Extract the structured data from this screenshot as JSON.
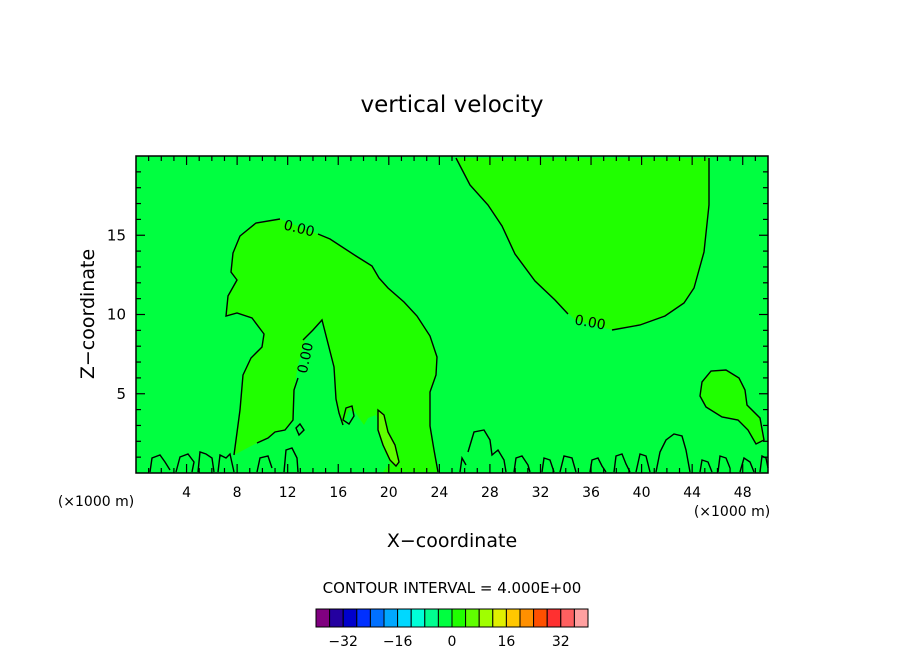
{
  "chart_data": {
    "type": "contour",
    "title": "vertical velocity",
    "xlabel": "X−coordinate",
    "ylabel": "Z−coordinate",
    "x_unit": "(×1000 m)",
    "y_unit": "(×1000 m)",
    "xlim": [
      0,
      50
    ],
    "ylim": [
      0,
      20
    ],
    "x_ticks": [
      "4",
      "8",
      "12",
      "16",
      "20",
      "24",
      "28",
      "32",
      "36",
      "40",
      "44",
      "48"
    ],
    "x_tick_values": [
      4,
      8,
      12,
      16,
      20,
      24,
      28,
      32,
      36,
      40,
      44,
      48
    ],
    "y_ticks": [
      "5",
      "10",
      "15"
    ],
    "y_tick_values": [
      5,
      10,
      15
    ],
    "contour_labels": [
      {
        "text": "0.00",
        "x": 13.0,
        "z": 15.5
      },
      {
        "text": "0.00",
        "x": 13.6,
        "z": 7.5
      },
      {
        "text": "0.00",
        "x": 36.0,
        "z": 9.5
      }
    ],
    "contour_interval_text": "CONTOUR INTERVAL = 4.000E+00",
    "colorbar": {
      "colors": [
        "#800080",
        "#2400a0",
        "#0000cc",
        "#0030ff",
        "#0070ff",
        "#00a8ff",
        "#00d8ff",
        "#00ffd8",
        "#00ff90",
        "#00ff40",
        "#20ff00",
        "#60ff00",
        "#a0ff00",
        "#e0f000",
        "#ffc800",
        "#ff9000",
        "#ff5000",
        "#ff3030",
        "#ff6060",
        "#ffa0a0"
      ],
      "tick_labels": [
        "−32",
        "−16",
        "0",
        "16",
        "32"
      ],
      "tick_values": [
        -32,
        -16,
        0,
        16,
        32
      ],
      "range": [
        -40,
        40
      ]
    },
    "background_color": "#00ff40",
    "positive_region_color": "#20ff00",
    "strong_positive_color": "#60ff00"
  }
}
